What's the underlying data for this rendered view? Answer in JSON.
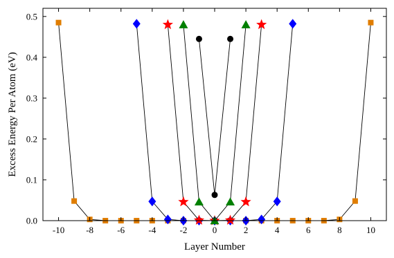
{
  "chart_data": {
    "type": "scatter",
    "title": "",
    "xlabel": "Layer Number",
    "ylabel": "Excess Energy Per Atom (eV)",
    "xlim": [
      -11,
      11
    ],
    "ylim": [
      0,
      0.52
    ],
    "xticks": [
      -10,
      -8,
      -6,
      -4,
      -2,
      0,
      2,
      4,
      6,
      8,
      10
    ],
    "yticks": [
      0.0,
      0.1,
      0.2,
      0.3,
      0.4,
      0.5
    ],
    "xtick_labels": [
      "-10",
      "-8",
      "-6",
      "-4",
      "-2",
      "0",
      "2",
      "4",
      "6",
      "8",
      "10"
    ],
    "ytick_labels": [
      "0.0",
      "0.1",
      "0.2",
      "0.3",
      "0.4",
      "0.5"
    ],
    "grid": false,
    "legend": "none",
    "series": [
      {
        "marker": "square",
        "color": "#e07d00",
        "x": [
          -10,
          -9,
          -8,
          -7,
          -6,
          -5,
          -4,
          -3,
          -2,
          -1,
          0,
          1,
          2,
          3,
          4,
          5,
          6,
          7,
          8,
          9,
          10
        ],
        "y": [
          0.485,
          0.048,
          0.003,
          0.0,
          0.0,
          0.0,
          0.0,
          0.0,
          0.0,
          0.0,
          0.0,
          0.0,
          0.0,
          0.0,
          0.0,
          0.0,
          0.0,
          0.0,
          0.003,
          0.048,
          0.485
        ]
      },
      {
        "marker": "diamond",
        "color": "#0000ff",
        "x": [
          -5,
          -4,
          -3,
          -2,
          -1,
          0,
          1,
          2,
          3,
          4,
          5
        ],
        "y": [
          0.482,
          0.047,
          0.003,
          0.0,
          0.0,
          0.0,
          0.0,
          0.0,
          0.003,
          0.047,
          0.482
        ]
      },
      {
        "marker": "star",
        "color": "#ff0000",
        "x": [
          -3,
          -2,
          -1,
          0,
          1,
          2,
          3
        ],
        "y": [
          0.48,
          0.046,
          0.001,
          0.0,
          0.001,
          0.046,
          0.48
        ]
      },
      {
        "marker": "triangle",
        "color": "#008000",
        "x": [
          -2,
          -1,
          0,
          1,
          2
        ],
        "y": [
          0.48,
          0.046,
          0.0,
          0.046,
          0.48
        ]
      },
      {
        "marker": "circle",
        "color": "#000000",
        "x": [
          -1,
          0,
          1
        ],
        "y": [
          0.445,
          0.063,
          0.445
        ]
      }
    ]
  }
}
